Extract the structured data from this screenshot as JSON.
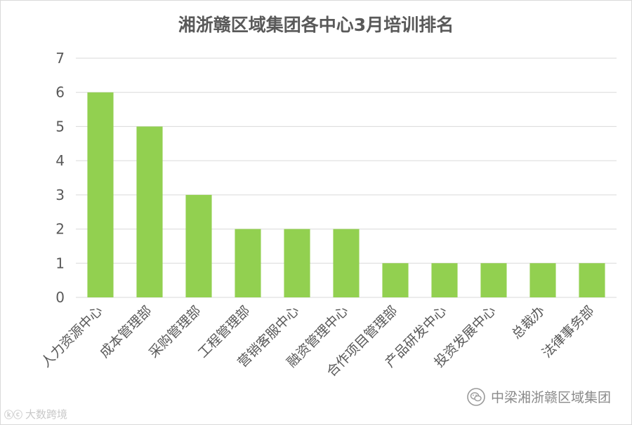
{
  "chart_data": {
    "type": "bar",
    "title": "湘浙赣区域集团各中心3月培训排名",
    "categories": [
      "人力资源中心",
      "成本管理部",
      "采购管理部",
      "工程管理部",
      "营销客服中心",
      "融资管理中心",
      "合作项目管理部",
      "产品研发中心",
      "投资发展中心",
      "总裁办",
      "法律事务部"
    ],
    "values": [
      6,
      5,
      3,
      2,
      2,
      2,
      1,
      1,
      1,
      1,
      1
    ],
    "ylim": [
      0,
      7
    ],
    "yticks": [
      "0",
      "1",
      "2",
      "3",
      "4",
      "5",
      "6",
      "7"
    ],
    "grid": true,
    "legend": "none",
    "bar_color": "#92d050",
    "grid_color": "#d9d9d9",
    "title_color": "#595959",
    "tick_color": "#595959"
  },
  "watermark": {
    "icon": "wechat-icon",
    "text": "中梁湘浙赣区域集团"
  },
  "corner_logo": {
    "mark": "ⓚⓒ",
    "text": "大数跨境"
  }
}
